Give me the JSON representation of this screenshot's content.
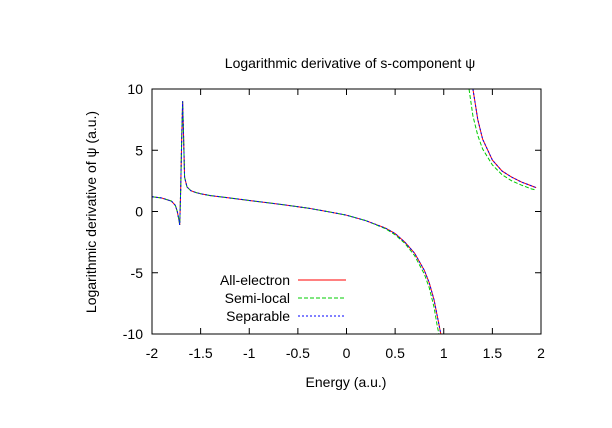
{
  "chart_data": {
    "type": "line",
    "title": "Logarithmic derivative of s-component ψ",
    "xlabel": "Energy (a.u.)",
    "ylabel": "Logarithmic derivative of ψ (a.u.)",
    "xlim": [
      -2,
      2
    ],
    "ylim": [
      -10,
      10
    ],
    "x_ticks": [
      "-2",
      "-1.5",
      "-1",
      "-0.5",
      "0",
      "0.5",
      "1",
      "1.5",
      "2"
    ],
    "y_ticks": [
      "10",
      "5",
      "0",
      "-5",
      "-10"
    ],
    "grid": false,
    "legend_position": "bottom-left",
    "series": [
      {
        "name": "All-electron",
        "color": "#ff0000",
        "dash": "solid",
        "segments": [
          [
            [
              -2.0,
              1.2
            ],
            [
              -1.9,
              1.1
            ],
            [
              -1.8,
              0.85
            ],
            [
              -1.76,
              0.5
            ],
            [
              -1.74,
              0.0
            ],
            [
              -1.725,
              -0.6
            ],
            [
              -1.715,
              -1.1
            ],
            [
              -1.705,
              1.8
            ],
            [
              -1.695,
              5.8
            ],
            [
              -1.685,
              9.0
            ],
            [
              -1.675,
              6.0
            ],
            [
              -1.665,
              2.8
            ],
            [
              -1.64,
              2.0
            ],
            [
              -1.6,
              1.7
            ],
            [
              -1.55,
              1.55
            ],
            [
              -1.5,
              1.45
            ],
            [
              -1.4,
              1.3
            ],
            [
              -1.2,
              1.1
            ],
            [
              -1.0,
              0.9
            ],
            [
              -0.8,
              0.7
            ],
            [
              -0.6,
              0.5
            ],
            [
              -0.4,
              0.28
            ],
            [
              -0.2,
              0.0
            ],
            [
              0.0,
              -0.3
            ],
            [
              0.2,
              -0.75
            ],
            [
              0.4,
              -1.35
            ],
            [
              0.5,
              -1.8
            ],
            [
              0.6,
              -2.5
            ],
            [
              0.7,
              -3.4
            ],
            [
              0.8,
              -4.8
            ],
            [
              0.85,
              -5.8
            ],
            [
              0.9,
              -7.2
            ],
            [
              0.95,
              -9.2
            ],
            [
              0.97,
              -10.0
            ]
          ],
          [
            [
              1.3,
              10.0
            ],
            [
              1.35,
              7.5
            ],
            [
              1.4,
              5.9
            ],
            [
              1.5,
              4.2
            ],
            [
              1.6,
              3.3
            ],
            [
              1.7,
              2.8
            ],
            [
              1.8,
              2.4
            ],
            [
              1.9,
              2.1
            ],
            [
              1.95,
              1.95
            ]
          ]
        ]
      },
      {
        "name": "Semi-local",
        "color": "#00cc00",
        "dash": "4,2",
        "segments": [
          [
            [
              -2.0,
              1.2
            ],
            [
              -1.9,
              1.1
            ],
            [
              -1.8,
              0.85
            ],
            [
              -1.76,
              0.5
            ],
            [
              -1.74,
              0.0
            ],
            [
              -1.725,
              -0.6
            ],
            [
              -1.715,
              -1.1
            ],
            [
              -1.705,
              1.8
            ],
            [
              -1.695,
              5.8
            ],
            [
              -1.685,
              9.0
            ],
            [
              -1.675,
              6.0
            ],
            [
              -1.665,
              2.8
            ],
            [
              -1.64,
              2.0
            ],
            [
              -1.6,
              1.7
            ],
            [
              -1.55,
              1.55
            ],
            [
              -1.5,
              1.45
            ],
            [
              -1.4,
              1.3
            ],
            [
              -1.2,
              1.1
            ],
            [
              -1.0,
              0.9
            ],
            [
              -0.8,
              0.7
            ],
            [
              -0.6,
              0.5
            ],
            [
              -0.4,
              0.28
            ],
            [
              -0.2,
              0.0
            ],
            [
              0.0,
              -0.3
            ],
            [
              0.2,
              -0.75
            ],
            [
              0.4,
              -1.4
            ],
            [
              0.5,
              -1.9
            ],
            [
              0.6,
              -2.6
            ],
            [
              0.7,
              -3.6
            ],
            [
              0.8,
              -5.1
            ],
            [
              0.85,
              -6.2
            ],
            [
              0.9,
              -7.8
            ],
            [
              0.93,
              -9.2
            ],
            [
              0.95,
              -10.0
            ]
          ],
          [
            [
              1.26,
              10.0
            ],
            [
              1.3,
              7.8
            ],
            [
              1.35,
              6.2
            ],
            [
              1.4,
              5.1
            ],
            [
              1.5,
              3.8
            ],
            [
              1.6,
              3.0
            ],
            [
              1.7,
              2.5
            ],
            [
              1.8,
              2.15
            ],
            [
              1.9,
              1.85
            ],
            [
              1.95,
              1.75
            ]
          ]
        ]
      },
      {
        "name": "Separable",
        "color": "#0000ff",
        "dash": "2,2",
        "segments": [
          [
            [
              -2.0,
              1.2
            ],
            [
              -1.9,
              1.1
            ],
            [
              -1.8,
              0.85
            ],
            [
              -1.76,
              0.5
            ],
            [
              -1.74,
              0.0
            ],
            [
              -1.725,
              -0.6
            ],
            [
              -1.715,
              -1.1
            ],
            [
              -1.705,
              1.8
            ],
            [
              -1.695,
              5.8
            ],
            [
              -1.685,
              9.0
            ],
            [
              -1.675,
              6.0
            ],
            [
              -1.665,
              2.8
            ],
            [
              -1.64,
              2.0
            ],
            [
              -1.6,
              1.7
            ],
            [
              -1.55,
              1.55
            ],
            [
              -1.5,
              1.45
            ],
            [
              -1.4,
              1.3
            ],
            [
              -1.2,
              1.1
            ],
            [
              -1.0,
              0.9
            ],
            [
              -0.8,
              0.7
            ],
            [
              -0.6,
              0.5
            ],
            [
              -0.4,
              0.28
            ],
            [
              -0.2,
              0.0
            ],
            [
              0.0,
              -0.3
            ],
            [
              0.2,
              -0.75
            ],
            [
              0.4,
              -1.35
            ],
            [
              0.5,
              -1.8
            ],
            [
              0.6,
              -2.5
            ],
            [
              0.7,
              -3.4
            ],
            [
              0.8,
              -4.8
            ],
            [
              0.85,
              -5.8
            ],
            [
              0.9,
              -7.2
            ],
            [
              0.95,
              -9.2
            ],
            [
              0.97,
              -10.0
            ]
          ],
          [
            [
              1.3,
              10.0
            ],
            [
              1.35,
              7.5
            ],
            [
              1.4,
              5.9
            ],
            [
              1.5,
              4.2
            ],
            [
              1.6,
              3.3
            ],
            [
              1.7,
              2.8
            ],
            [
              1.8,
              2.4
            ],
            [
              1.9,
              2.1
            ],
            [
              1.95,
              1.95
            ]
          ]
        ]
      }
    ]
  }
}
